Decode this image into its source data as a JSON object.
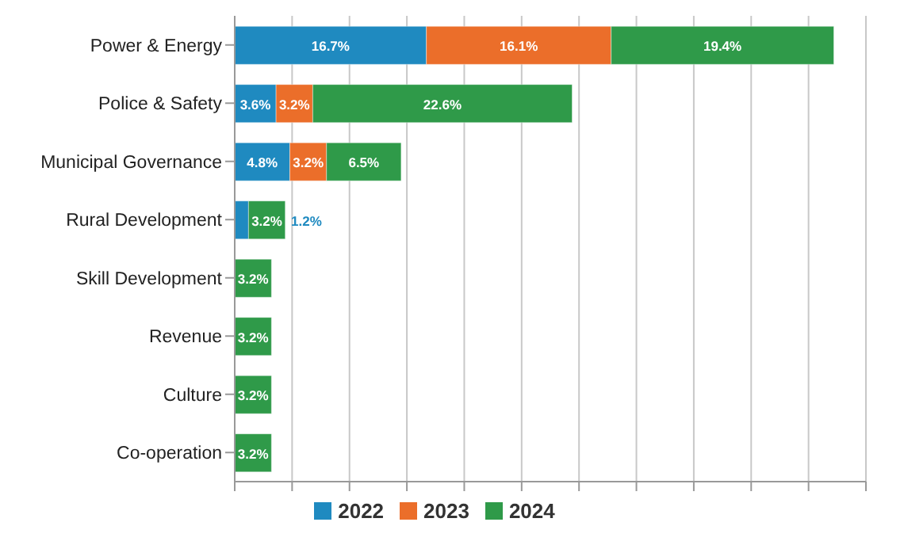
{
  "chart_data": {
    "type": "bar",
    "orientation": "horizontal",
    "stacked": true,
    "categories": [
      "Power & Energy",
      "Police & Safety",
      "Municipal Governance",
      "Rural Development",
      "Skill Development",
      "Revenue",
      "Culture",
      "Co-operation"
    ],
    "series": [
      {
        "name": "2022",
        "color": "#1f8ac0",
        "values": [
          16.7,
          3.6,
          4.8,
          1.2,
          null,
          null,
          null,
          null
        ],
        "value_labels": [
          "16.7%",
          "3.6%",
          "4.8%",
          "1.2%",
          null,
          null,
          null,
          null
        ]
      },
      {
        "name": "2023",
        "color": "#eb6e2a",
        "values": [
          16.1,
          3.2,
          3.2,
          null,
          null,
          null,
          null,
          null
        ],
        "value_labels": [
          "16.1%",
          "3.2%",
          "3.2%",
          null,
          null,
          null,
          null,
          null
        ]
      },
      {
        "name": "2024",
        "color": "#2f9a49",
        "values": [
          19.4,
          22.6,
          6.5,
          3.2,
          3.2,
          3.2,
          3.2,
          3.2
        ],
        "value_labels": [
          "19.4%",
          "22.6%",
          "6.5%",
          "3.2%",
          "3.2%",
          "3.2%",
          "3.2%",
          "3.2%"
        ]
      }
    ],
    "xlim": [
      0,
      55
    ],
    "xticks": [
      {
        "value": 0,
        "label": null
      },
      {
        "value": 5,
        "label": null
      },
      {
        "value": 10,
        "label": null
      },
      {
        "value": 15,
        "label": null
      },
      {
        "value": 20,
        "label": null
      },
      {
        "value": 25,
        "label": null
      },
      {
        "value": 30,
        "label": null
      },
      {
        "value": 35,
        "label": null
      },
      {
        "value": 40,
        "label": null
      },
      {
        "value": 45,
        "label": null
      },
      {
        "value": 50,
        "label": null
      },
      {
        "value": 55,
        "label": null
      }
    ],
    "grid": "x",
    "legend": "bottom",
    "tick_labels": "y"
  }
}
